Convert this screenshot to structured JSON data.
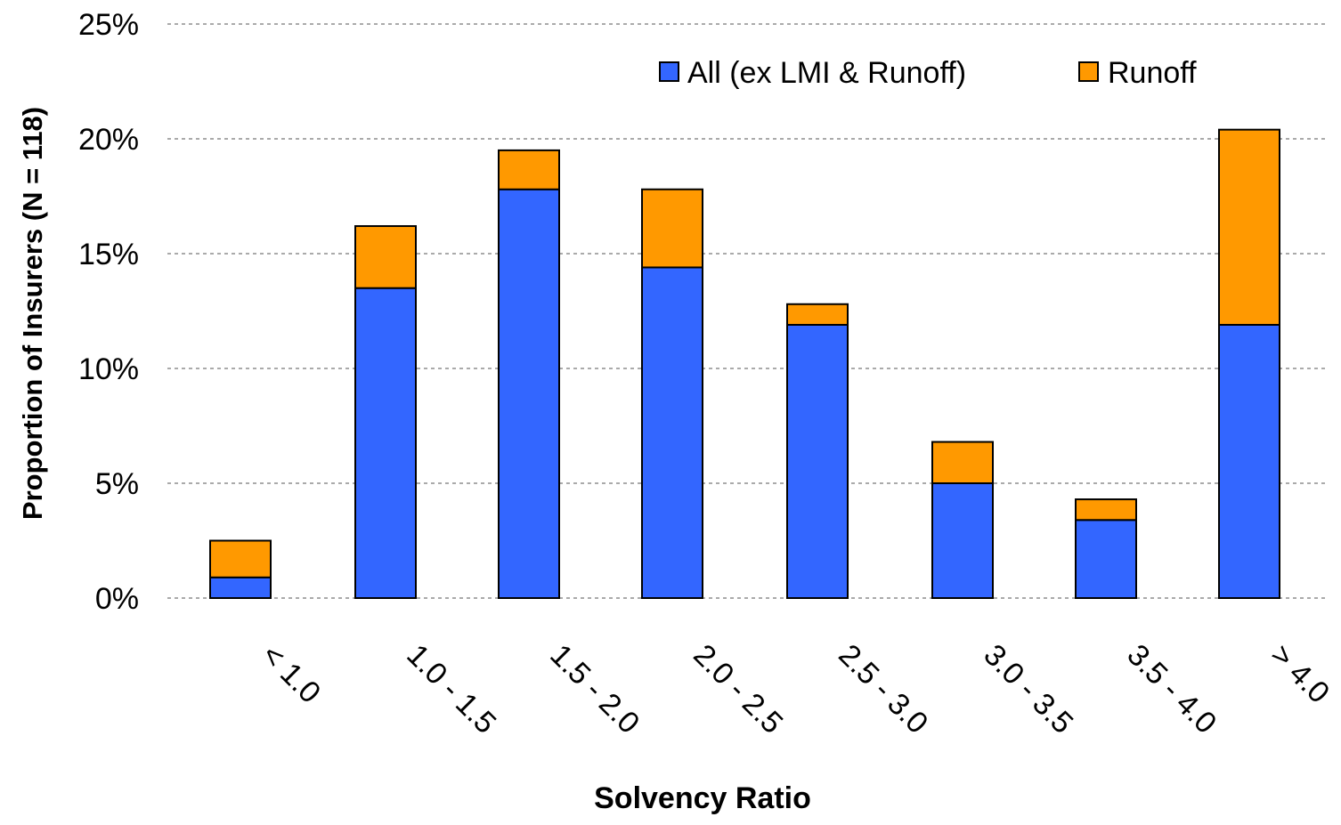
{
  "chart_data": {
    "type": "bar",
    "stacked": true,
    "title": "",
    "xlabel": "Solvency Ratio",
    "ylabel": "Proportion of Insurers (N = 118)",
    "categories": [
      "< 1.0",
      "1.0 - 1.5",
      "1.5 - 2.0",
      "2.0 - 2.5",
      "2.5 - 3.0",
      "3.0 - 3.5",
      "3.5 - 4.0",
      "> 4.0"
    ],
    "series": [
      {
        "name": "All (ex LMI & Runoff)",
        "color": "#3366FF",
        "values": [
          0.9,
          13.5,
          17.8,
          14.4,
          11.9,
          5.0,
          3.4,
          11.9
        ]
      },
      {
        "name": "Runoff",
        "color": "#FF9900",
        "values": [
          1.6,
          2.7,
          1.7,
          3.4,
          0.9,
          1.8,
          0.9,
          8.5
        ]
      }
    ],
    "ylim": [
      0,
      25
    ],
    "yticks": [
      0,
      5,
      10,
      15,
      20,
      25
    ],
    "ytick_labels": [
      "0%",
      "5%",
      "10%",
      "15%",
      "20%",
      "25%"
    ],
    "grid": true,
    "legend_position": "top-right"
  }
}
